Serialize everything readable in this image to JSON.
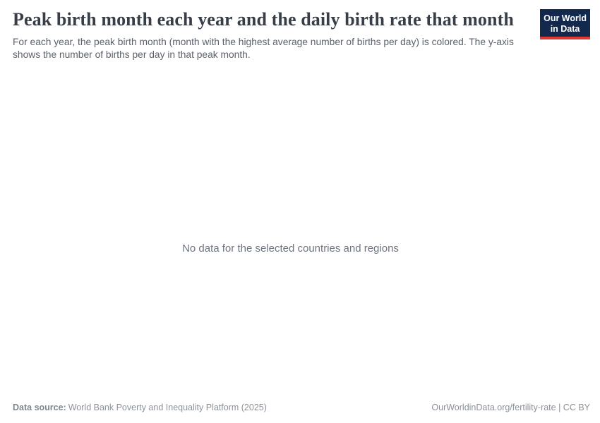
{
  "header": {
    "title": "Peak birth month each year and the daily birth rate that month",
    "subtitle": "For each year, the peak birth month (month with the highest average number of births per day) is colored. The y-axis shows the number of births per day in that peak month.",
    "logo": {
      "line1": "Our World",
      "line2": "in Data"
    }
  },
  "chart_area": {
    "no_data_message": "No data for the selected countries and regions"
  },
  "chart_data": {
    "type": "scatter",
    "title": "Peak birth month each year and the daily birth rate that month",
    "xlabel": "",
    "ylabel": "",
    "series": [],
    "no_data_message": "No data for the selected countries and regions"
  },
  "footer": {
    "data_source_label": "Data source:",
    "data_source_value": "World Bank Poverty and Inequality Platform (2025)",
    "url_note": "OurWorldinData.org/fertility-rate | CC BY"
  },
  "colors": {
    "title_text": "#383e47",
    "subtitle_text": "#5b616b",
    "no_data_text": "#6e7581",
    "footer_text": "#8b9199",
    "logo_navy": "#12294d",
    "logo_red": "#dc3b33",
    "background": "#ffffff"
  }
}
